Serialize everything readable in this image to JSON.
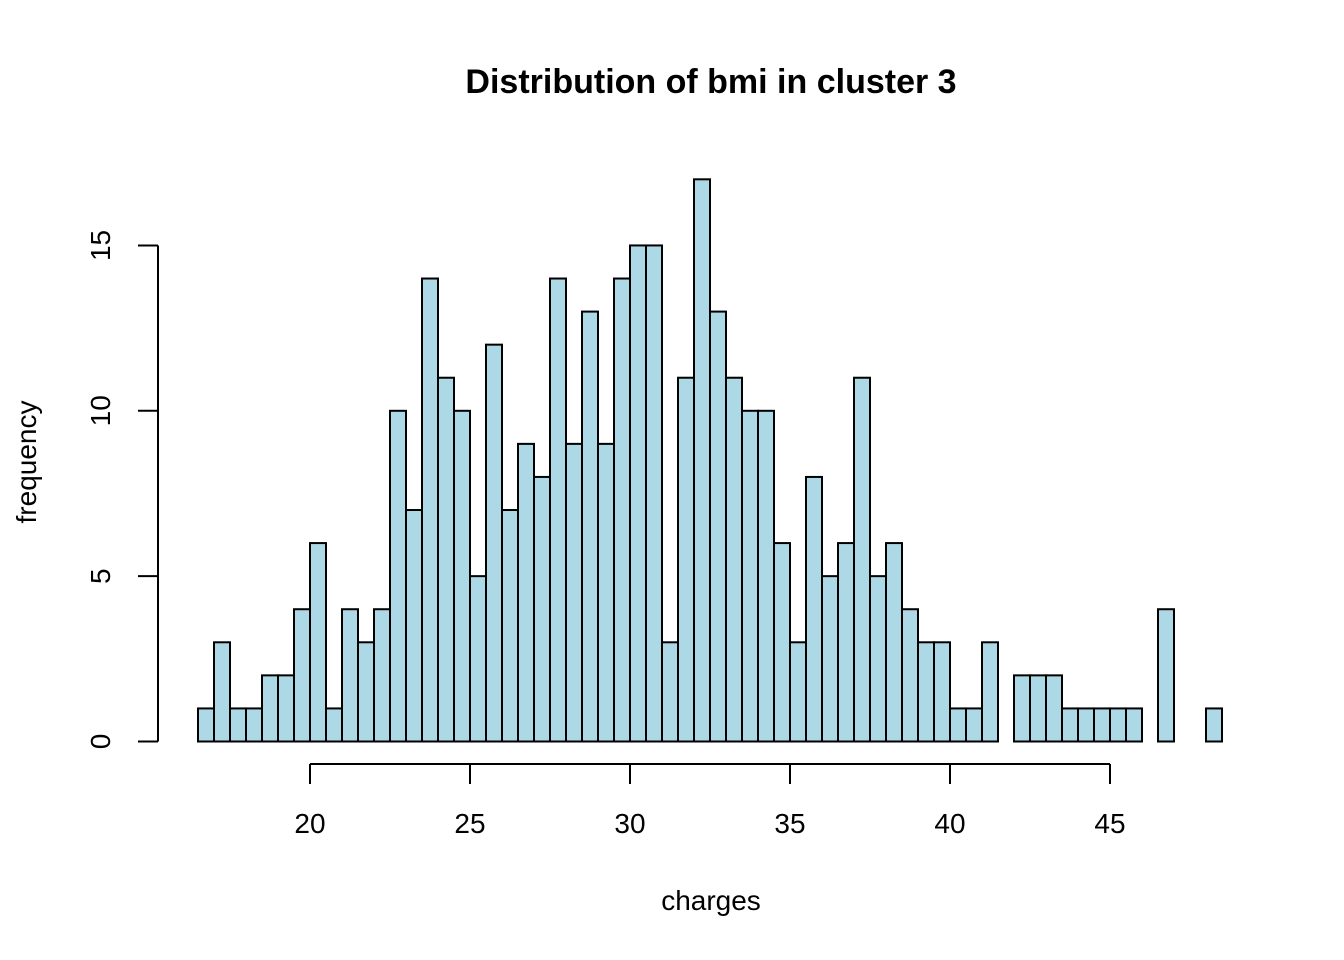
{
  "chart_data": {
    "type": "bar",
    "title": "Distribution of bmi in cluster 3",
    "xlabel": "charges",
    "ylabel": "frequency",
    "bin_width": 0.5,
    "bin_start": 16.5,
    "values": [
      1,
      3,
      1,
      1,
      2,
      2,
      4,
      6,
      1,
      4,
      3,
      4,
      10,
      7,
      14,
      11,
      10,
      5,
      12,
      7,
      9,
      8,
      14,
      9,
      13,
      9,
      14,
      15,
      15,
      3,
      11,
      17,
      13,
      11,
      10,
      10,
      6,
      3,
      8,
      5,
      6,
      11,
      5,
      6,
      4,
      3,
      3,
      1,
      1,
      3,
      0,
      2,
      2,
      2,
      1,
      1,
      1,
      1,
      1,
      0,
      4,
      0,
      0,
      1
    ],
    "xticks": [
      20,
      25,
      30,
      35,
      40,
      45
    ],
    "yticks": [
      0,
      5,
      10,
      15
    ],
    "xlim": [
      20,
      45
    ],
    "ylim": [
      0,
      15
    ],
    "bar_color": "#add8e6",
    "grid": false
  }
}
